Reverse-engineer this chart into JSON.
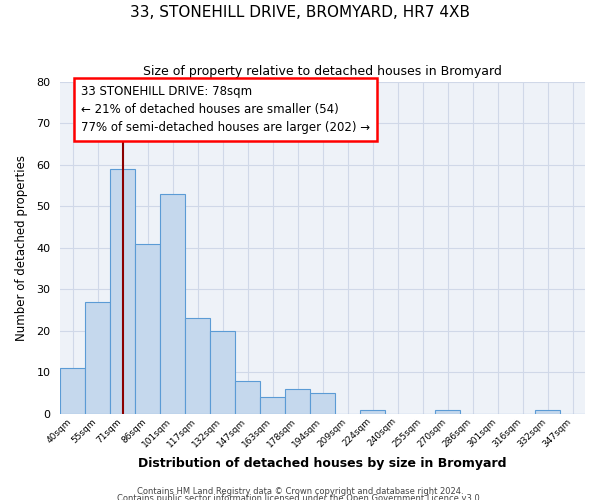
{
  "title": "33, STONEHILL DRIVE, BROMYARD, HR7 4XB",
  "subtitle": "Size of property relative to detached houses in Bromyard",
  "xlabel": "Distribution of detached houses by size in Bromyard",
  "ylabel": "Number of detached properties",
  "bar_labels": [
    "40sqm",
    "55sqm",
    "71sqm",
    "86sqm",
    "101sqm",
    "117sqm",
    "132sqm",
    "147sqm",
    "163sqm",
    "178sqm",
    "194sqm",
    "209sqm",
    "224sqm",
    "240sqm",
    "255sqm",
    "270sqm",
    "286sqm",
    "301sqm",
    "316sqm",
    "332sqm",
    "347sqm"
  ],
  "bar_values": [
    11,
    27,
    59,
    41,
    53,
    23,
    20,
    8,
    4,
    6,
    5,
    0,
    1,
    0,
    0,
    1,
    0,
    0,
    0,
    1,
    0
  ],
  "bar_color": "#c5d8ed",
  "bar_edgecolor": "#5b9bd5",
  "bar_linewidth": 0.8,
  "vline_x": 2.5,
  "vline_color": "#8b0000",
  "vline_linewidth": 1.5,
  "ylim": [
    0,
    80
  ],
  "yticks": [
    0,
    10,
    20,
    30,
    40,
    50,
    60,
    70,
    80
  ],
  "annotation_line1": "33 STONEHILL DRIVE: 78sqm",
  "annotation_line2": "← 21% of detached houses are smaller (54)",
  "annotation_line3": "77% of semi-detached houses are larger (202) →",
  "annotation_fontsize": 8.5,
  "grid_color": "#d0d8e8",
  "bg_color": "#eef2f8",
  "footer_line1": "Contains HM Land Registry data © Crown copyright and database right 2024.",
  "footer_line2": "Contains public sector information licensed under the Open Government Licence v3.0."
}
